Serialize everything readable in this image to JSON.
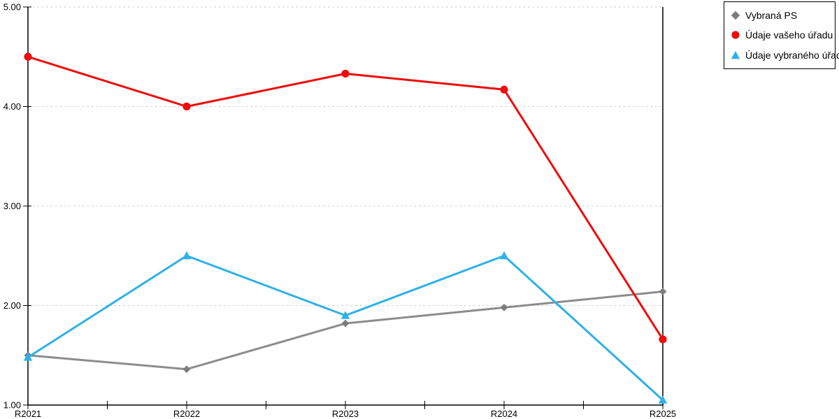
{
  "chart_data": {
    "type": "line",
    "title": "",
    "xlabel": "",
    "ylabel": "",
    "categories": [
      "R2021",
      "R2022",
      "R2023",
      "R2024",
      "R2025"
    ],
    "series": [
      {
        "name": "Vybraná PS",
        "marker": "diamond",
        "color": "#8c8c8c",
        "marker_color": "#7d7d7d",
        "values": [
          1.5,
          1.36,
          1.82,
          1.98,
          2.14
        ]
      },
      {
        "name": "Údaje vašeho úřadu",
        "marker": "circle",
        "color": "#ee0c0c",
        "marker_color": "#ee0c0c",
        "values": [
          4.5,
          4.0,
          4.33,
          4.17,
          1.66
        ]
      },
      {
        "name": "Údaje vybraného úřadu",
        "marker": "triangle",
        "color": "#2fb0e8",
        "marker_color": "#2fb0e8",
        "values": [
          1.48,
          2.5,
          1.9,
          2.5,
          1.05
        ]
      }
    ],
    "ylim": [
      1,
      5
    ],
    "ytick_labels": [
      "1.00",
      "2.00",
      "3.00",
      "4.00",
      "5.00"
    ],
    "grid": "horizontal-dotted",
    "grid_color": "#c9c9c9",
    "axis_color": "#000000",
    "label_color": "#000000",
    "legend_position": "top-right",
    "plot_background": "#ffffff"
  }
}
